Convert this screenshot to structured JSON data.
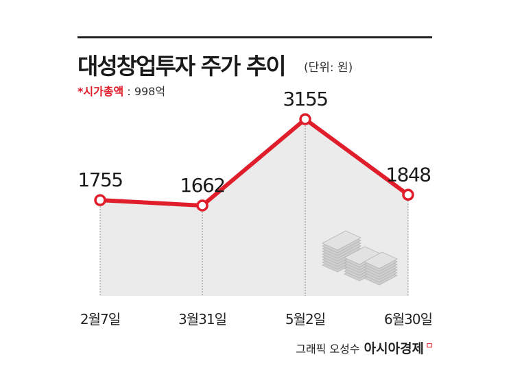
{
  "title": "대성창업투자 주가 추이",
  "unit": "(단위: 원)",
  "market_cap": {
    "label": "*시가총액",
    "separator": " : ",
    "value": "998억"
  },
  "credit": {
    "byline": "그래픽 오성수",
    "brand": "아시아경제",
    "mark": "ㅁ"
  },
  "colors": {
    "line": "#e01e2b",
    "area": "#ebebeb",
    "text": "#222222"
  },
  "icon": "money-stack-icon",
  "chart_data": {
    "type": "line",
    "categories": [
      "2월7일",
      "3월31일",
      "5월2일",
      "6월30일"
    ],
    "values": [
      1755,
      1662,
      3155,
      1848
    ],
    "title": "대성창업투자 주가 추이",
    "ylabel": "",
    "ylim": [
      0,
      3155
    ]
  }
}
